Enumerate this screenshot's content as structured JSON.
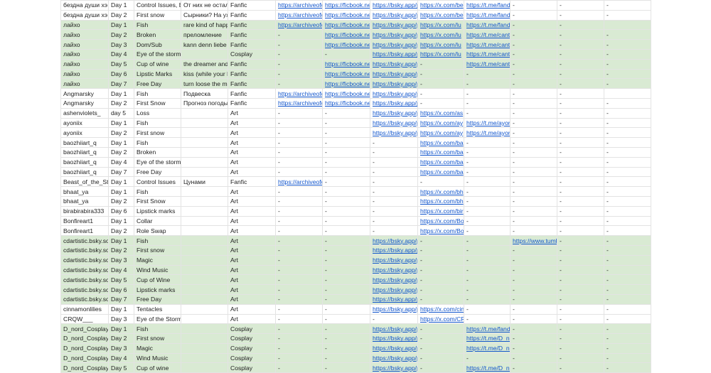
{
  "colors": {
    "highlight_row": "#d9ead3",
    "link": "#1155cc",
    "grid": "#e3e3e3"
  },
  "rows": [
    {
      "hl": false,
      "cells": [
        "бездна души хэ",
        "Day 1",
        "Control Issues, B",
        "От них не остал",
        "Fanfic",
        "https://archiveofo",
        "https://ficbook.ne",
        "https://bsky.app/p",
        "https://x.com/be",
        "https://t.me/fando",
        "-",
        "-",
        "-"
      ]
    },
    {
      "hl": false,
      "cells": [
        "бездна души хэ",
        "Day 2",
        "First snow",
        "Сырники? На уж",
        "Fanfic",
        "https://archiveofo",
        "https://ficbook.ne",
        "https://bsky.app/p",
        "https://x.com/be",
        "https://t.me/fando",
        "-",
        "-",
        "-"
      ]
    },
    {
      "hl": true,
      "cells": [
        "лайхо",
        "Day 1",
        "Fish",
        "rare kind of happ",
        "Fanfic",
        "https://archiveofo",
        "https://ficbook.ne",
        "https://bsky.app/p",
        "https://x.com/lu",
        "https://t.me/fando",
        "-",
        "-",
        ""
      ]
    },
    {
      "hl": true,
      "cells": [
        "лайхо",
        "Day 2",
        "Broken",
        "преломление",
        "Fanfic",
        "-",
        "https://ficbook.ne",
        "https://bsky.app/p",
        "https://x.com/lu",
        "https://t.me/cante",
        "-",
        "-",
        "-"
      ]
    },
    {
      "hl": true,
      "cells": [
        "лайхо",
        "Day 3",
        "Dom/Sub",
        "kann denn liebe s",
        "Fanfic",
        "-",
        "https://ficbook.ne",
        "https://bsky.app/p",
        "https://x.com/lu",
        "https://t.me/cante",
        "-",
        "-",
        "-"
      ]
    },
    {
      "hl": true,
      "cells": [
        "лайхо",
        "Day 4",
        "Eye of the storm",
        "",
        "Cosplay",
        "-",
        "-",
        "https://bsky.app/p",
        "https://x.com/lu",
        "https://t.me/cante",
        "-",
        "-",
        "-"
      ]
    },
    {
      "hl": true,
      "cells": [
        "лайхо",
        "Day 5",
        "Cup of wine",
        "the dreamer and",
        "Fanfic",
        "-",
        "https://ficbook.ne",
        "https://bsky.app/p",
        "-",
        "https://t.me/cante",
        "-",
        "-",
        "-"
      ]
    },
    {
      "hl": true,
      "cells": [
        "лайхо",
        "Day 6",
        "Lipstic Marks",
        "kiss (while your li",
        "Fanfic",
        "-",
        "https://ficbook.ne",
        "https://bsky.app/p",
        "-",
        "-",
        "-",
        "-",
        "-"
      ]
    },
    {
      "hl": true,
      "cells": [
        "лайхо",
        "Day 7",
        "Free Day",
        "turn loose the me",
        "Fanfic",
        "-",
        "https://ficbook.ne",
        "https://bsky.app/p",
        "-",
        "-",
        "-",
        "-",
        "-"
      ]
    },
    {
      "hl": false,
      "cells": [
        "Angmarsky",
        "Day 1",
        "Fish",
        "Подвеска",
        "Fanfic",
        "https://archiveofo",
        "https://ficbook.ne",
        "https://bsky.app/p",
        "-",
        "-",
        "-",
        "-",
        ""
      ]
    },
    {
      "hl": false,
      "cells": [
        "Angmarsky",
        "Day 2",
        "First Snow",
        "Прогноз погоды",
        "Fanfic",
        "https://archiveofo",
        "https://ficbook.ne",
        "https://bsky.app/p",
        "-",
        "-",
        "-",
        "-",
        "-"
      ]
    },
    {
      "hl": false,
      "cells": [
        "ashenviolets_",
        "day 5",
        "Loss",
        "",
        "Art",
        "-",
        "-",
        "https://bsky.app/p",
        "https://x.com/as",
        "-",
        "-",
        "-",
        "-"
      ]
    },
    {
      "hl": false,
      "cells": [
        "ayoniix",
        "Day 1",
        "Fish",
        "",
        "Art",
        "-",
        "-",
        "https://bsky.app/p",
        "https://x.com/ay",
        "https://t.me/ayoni",
        "-",
        "-",
        "-"
      ]
    },
    {
      "hl": false,
      "cells": [
        "ayoniix",
        "Day 2",
        "First snow",
        "",
        "Art",
        "-",
        "-",
        "https://bsky.app/p",
        "https://x.com/ay",
        "https://t.me/ayoni",
        "-",
        "-",
        "-"
      ]
    },
    {
      "hl": false,
      "cells": [
        "baozhiiart_q",
        "Day 1",
        "Fish",
        "",
        "Art",
        "-",
        "-",
        "-",
        "https://x.com/ba",
        "-",
        "-",
        "-",
        "-"
      ]
    },
    {
      "hl": false,
      "cells": [
        "baozhiiart_q",
        "Day 2",
        "Broken",
        "",
        "Art",
        "-",
        "-",
        "-",
        "https://x.com/ba",
        "-",
        "-",
        "-",
        "-"
      ]
    },
    {
      "hl": false,
      "cells": [
        "baozhiiart_q",
        "Day 4",
        "Eye of the storm",
        "",
        "Art",
        "-",
        "-",
        "-",
        "https://x.com/ba",
        "-",
        "-",
        "-",
        "-"
      ]
    },
    {
      "hl": false,
      "cells": [
        "baozhiiart_q",
        "Day 7",
        "Free Day",
        "",
        "Art",
        "-",
        "-",
        "-",
        "https://x.com/ba",
        "-",
        "-",
        "-",
        "-"
      ]
    },
    {
      "hl": false,
      "cells": [
        "Beast_of_the_St",
        "Day 1",
        "Control Issues",
        "Цунами",
        "Fanfic",
        "https://archiveofo",
        "-",
        "-",
        "-",
        "-",
        "-",
        "-",
        "-"
      ]
    },
    {
      "hl": false,
      "cells": [
        "bhaat_ya",
        "Day 1",
        "Fish",
        "",
        "Art",
        "-",
        "-",
        "-",
        "https://x.com/bh",
        "-",
        "-",
        "-",
        "-"
      ]
    },
    {
      "hl": false,
      "cells": [
        "bhaat_ya",
        "Day 2",
        "First Snow",
        "",
        "Art",
        "-",
        "-",
        "-",
        "https://x.com/bh",
        "-",
        "-",
        "-",
        "-"
      ]
    },
    {
      "hl": false,
      "cells": [
        "birabirabira333",
        "Day 6",
        "Lipstick marks",
        "",
        "Art",
        "-",
        "-",
        "-",
        "https://x.com/bir",
        "-",
        "-",
        "-",
        "-"
      ]
    },
    {
      "hl": false,
      "cells": [
        "Bonfireart1",
        "Day 1",
        "Collar",
        "",
        "Art",
        "-",
        "-",
        "-",
        "https://x.com/Bo",
        "-",
        "-",
        "-",
        "-"
      ]
    },
    {
      "hl": false,
      "cells": [
        "Bonfireart1",
        "Day 2",
        "Role Swap",
        "",
        "Art",
        "-",
        "-",
        "-",
        "https://x.com/Bo",
        "-",
        "-",
        "-",
        "-"
      ]
    },
    {
      "hl": true,
      "cells": [
        "cdartistic.bsky.so",
        "Day 1",
        "Fish",
        "",
        "Art",
        "-",
        "-",
        "https://bsky.app/p",
        "-",
        "-",
        "https://www.tumb",
        "-",
        "-"
      ]
    },
    {
      "hl": true,
      "cells": [
        "cdartistic.bsky.so",
        "Day 2",
        "First snow",
        "",
        "Art",
        "-",
        "-",
        "https://bsky.app/p",
        "-",
        "-",
        "-",
        "-",
        "-"
      ]
    },
    {
      "hl": true,
      "cells": [
        "cdartistic.bsky.so",
        "Day 3",
        "Magic",
        "",
        "Art",
        "-",
        "-",
        "https://bsky.app/p",
        "-",
        "-",
        "-",
        "-",
        "-"
      ]
    },
    {
      "hl": true,
      "cells": [
        "cdartistic.bsky.so",
        "Day 4",
        "Wind Music",
        "",
        "Art",
        "-",
        "-",
        "https://bsky.app/p",
        "-",
        "-",
        "-",
        "-",
        "-"
      ]
    },
    {
      "hl": true,
      "cells": [
        "cdartistic.bsky.so",
        "Day 5",
        "Cup of Wine",
        "",
        "Art",
        "-",
        "-",
        "https://bsky.app/p",
        "-",
        "-",
        "-",
        "-",
        "-"
      ]
    },
    {
      "hl": true,
      "cells": [
        "cdartistic.bsky.so",
        "Day 6",
        "Lipstick marks",
        "",
        "Art",
        "-",
        "-",
        "https://bsky.app/p",
        "-",
        "-",
        "-",
        "-",
        "-"
      ]
    },
    {
      "hl": true,
      "cells": [
        "cdartistic.bsky.so",
        "Day 7",
        "Free Day",
        "",
        "Art",
        "-",
        "-",
        "https://bsky.app/p",
        "-",
        "-",
        "-",
        "-",
        "-"
      ]
    },
    {
      "hl": false,
      "cells": [
        "cinnamonlilies",
        "Day 1",
        "Tentacles",
        "",
        "Art",
        "-",
        "-",
        "https://bsky.app/p",
        "https://x.com/cin",
        "-",
        "-",
        "-",
        "-"
      ]
    },
    {
      "hl": false,
      "cells": [
        "CRQW___",
        "Day 3",
        "Eye of the Storm",
        "",
        "Art",
        "-",
        "-",
        "-",
        "https://x.com/CR",
        "-",
        "-",
        "-",
        "-"
      ]
    },
    {
      "hl": true,
      "cells": [
        "D_nord_Cosplay",
        "Day 1",
        "Fish",
        "",
        "Cosplay",
        "-",
        "-",
        "https://bsky.app/p",
        "-",
        "https://t.me/fando",
        "-",
        "-",
        "-"
      ]
    },
    {
      "hl": true,
      "cells": [
        "D_nord_Cosplay",
        "Day 2",
        "First snow",
        "",
        "Cosplay",
        "-",
        "-",
        "https://bsky.app/p",
        "-",
        "https://t.me/D_no",
        "-",
        "-",
        "-"
      ]
    },
    {
      "hl": true,
      "cells": [
        "D_nord_Cosplay",
        "Day 3",
        "Magic",
        "",
        "Cosplay",
        "-",
        "-",
        "https://bsky.app/p",
        "-",
        "https://t.me/D_no",
        "-",
        "-",
        "-"
      ]
    },
    {
      "hl": true,
      "cells": [
        "D_nord_Cosplay",
        "Day 4",
        "Wind Music",
        "",
        "Cosplay",
        "-",
        "-",
        "https://bsky.app/p",
        "-",
        "-",
        "-",
        "-",
        "-"
      ]
    },
    {
      "hl": true,
      "cells": [
        "D_nord_Cosplay",
        "Day 5",
        "Cup of wine",
        "",
        "Cosplay",
        "-",
        "-",
        "https://bsky.app/p",
        "-",
        "https://t.me/D_no",
        "-",
        "-",
        "-"
      ]
    }
  ]
}
